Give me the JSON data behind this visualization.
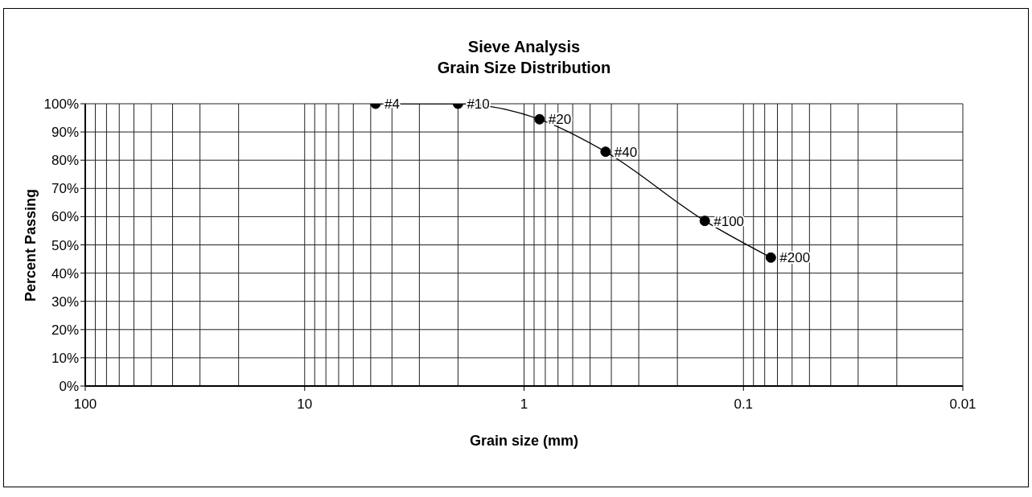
{
  "chart_data": {
    "type": "line",
    "title": "Sieve Analysis",
    "subtitle": "Grain Size Distribution",
    "xlabel": "Grain size (mm)",
    "ylabel": "Percent Passing",
    "x": [
      4.75,
      2.0,
      0.85,
      0.425,
      0.15,
      0.075
    ],
    "values": [
      100,
      100,
      94.5,
      83,
      58.5,
      45.5
    ],
    "color": "#000000",
    "xlim": [
      100,
      0.01
    ],
    "xticks": [
      100,
      {
        "value": 90,
        "label": null
      },
      {
        "value": 80,
        "label": null
      },
      {
        "value": 70,
        "label": null
      },
      {
        "value": 60,
        "label": null
      },
      {
        "value": 50,
        "label": null
      },
      {
        "value": 40,
        "label": null
      },
      {
        "value": 30,
        "label": null
      },
      {
        "value": 20,
        "label": null
      },
      10,
      {
        "value": 9,
        "label": null
      },
      {
        "value": 8,
        "label": null
      },
      {
        "value": 7,
        "label": null
      },
      {
        "value": 6,
        "label": null
      },
      {
        "value": 5,
        "label": null
      },
      {
        "value": 4,
        "label": null
      },
      {
        "value": 3,
        "label": null
      },
      {
        "value": 2,
        "label": null
      },
      1,
      {
        "value": 0.9,
        "label": null
      },
      {
        "value": 0.8,
        "label": null
      },
      {
        "value": 0.7,
        "label": null
      },
      {
        "value": 0.6,
        "label": null
      },
      {
        "value": 0.5,
        "label": null
      },
      {
        "value": 0.4,
        "label": null
      },
      {
        "value": 0.3,
        "label": null
      },
      {
        "value": 0.2,
        "label": null
      },
      0.1,
      {
        "value": 0.09,
        "label": null
      },
      {
        "value": 0.08,
        "label": null
      },
      {
        "value": 0.07,
        "label": null
      },
      {
        "value": 0.06,
        "label": null
      },
      {
        "value": 0.05,
        "label": null
      },
      {
        "value": 0.04,
        "label": null
      },
      {
        "value": 0.03,
        "label": null
      },
      {
        "value": 0.02,
        "label": null
      },
      0.01
    ],
    "ylim": [
      0,
      100
    ],
    "yticks": [
      {
        "value": 0,
        "label": "0%"
      },
      {
        "value": 10,
        "label": "10%"
      },
      {
        "value": 20,
        "label": "20%"
      },
      {
        "value": 30,
        "label": "30%"
      },
      {
        "value": 40,
        "label": "40%"
      },
      {
        "value": 50,
        "label": "50%"
      },
      {
        "value": 60,
        "label": "60%"
      },
      {
        "value": 70,
        "label": "70%"
      },
      {
        "value": 80,
        "label": "80%"
      },
      {
        "value": 90,
        "label": "90%"
      },
      {
        "value": 100,
        "label": "100%"
      }
    ],
    "log": "x",
    "grid": true,
    "marker": "circle",
    "line_style": "solid",
    "annotations": [
      {
        "text": "#4",
        "x": 4.75,
        "y": 100
      },
      {
        "text": "#10",
        "x": 2.0,
        "y": 100
      },
      {
        "text": "#20",
        "x": 0.85,
        "y": 94.5
      },
      {
        "text": "#40",
        "x": 0.425,
        "y": 83
      },
      {
        "text": "#100",
        "x": 0.15,
        "y": 58.5
      },
      {
        "text": "#200",
        "x": 0.075,
        "y": 45.5
      }
    ]
  }
}
